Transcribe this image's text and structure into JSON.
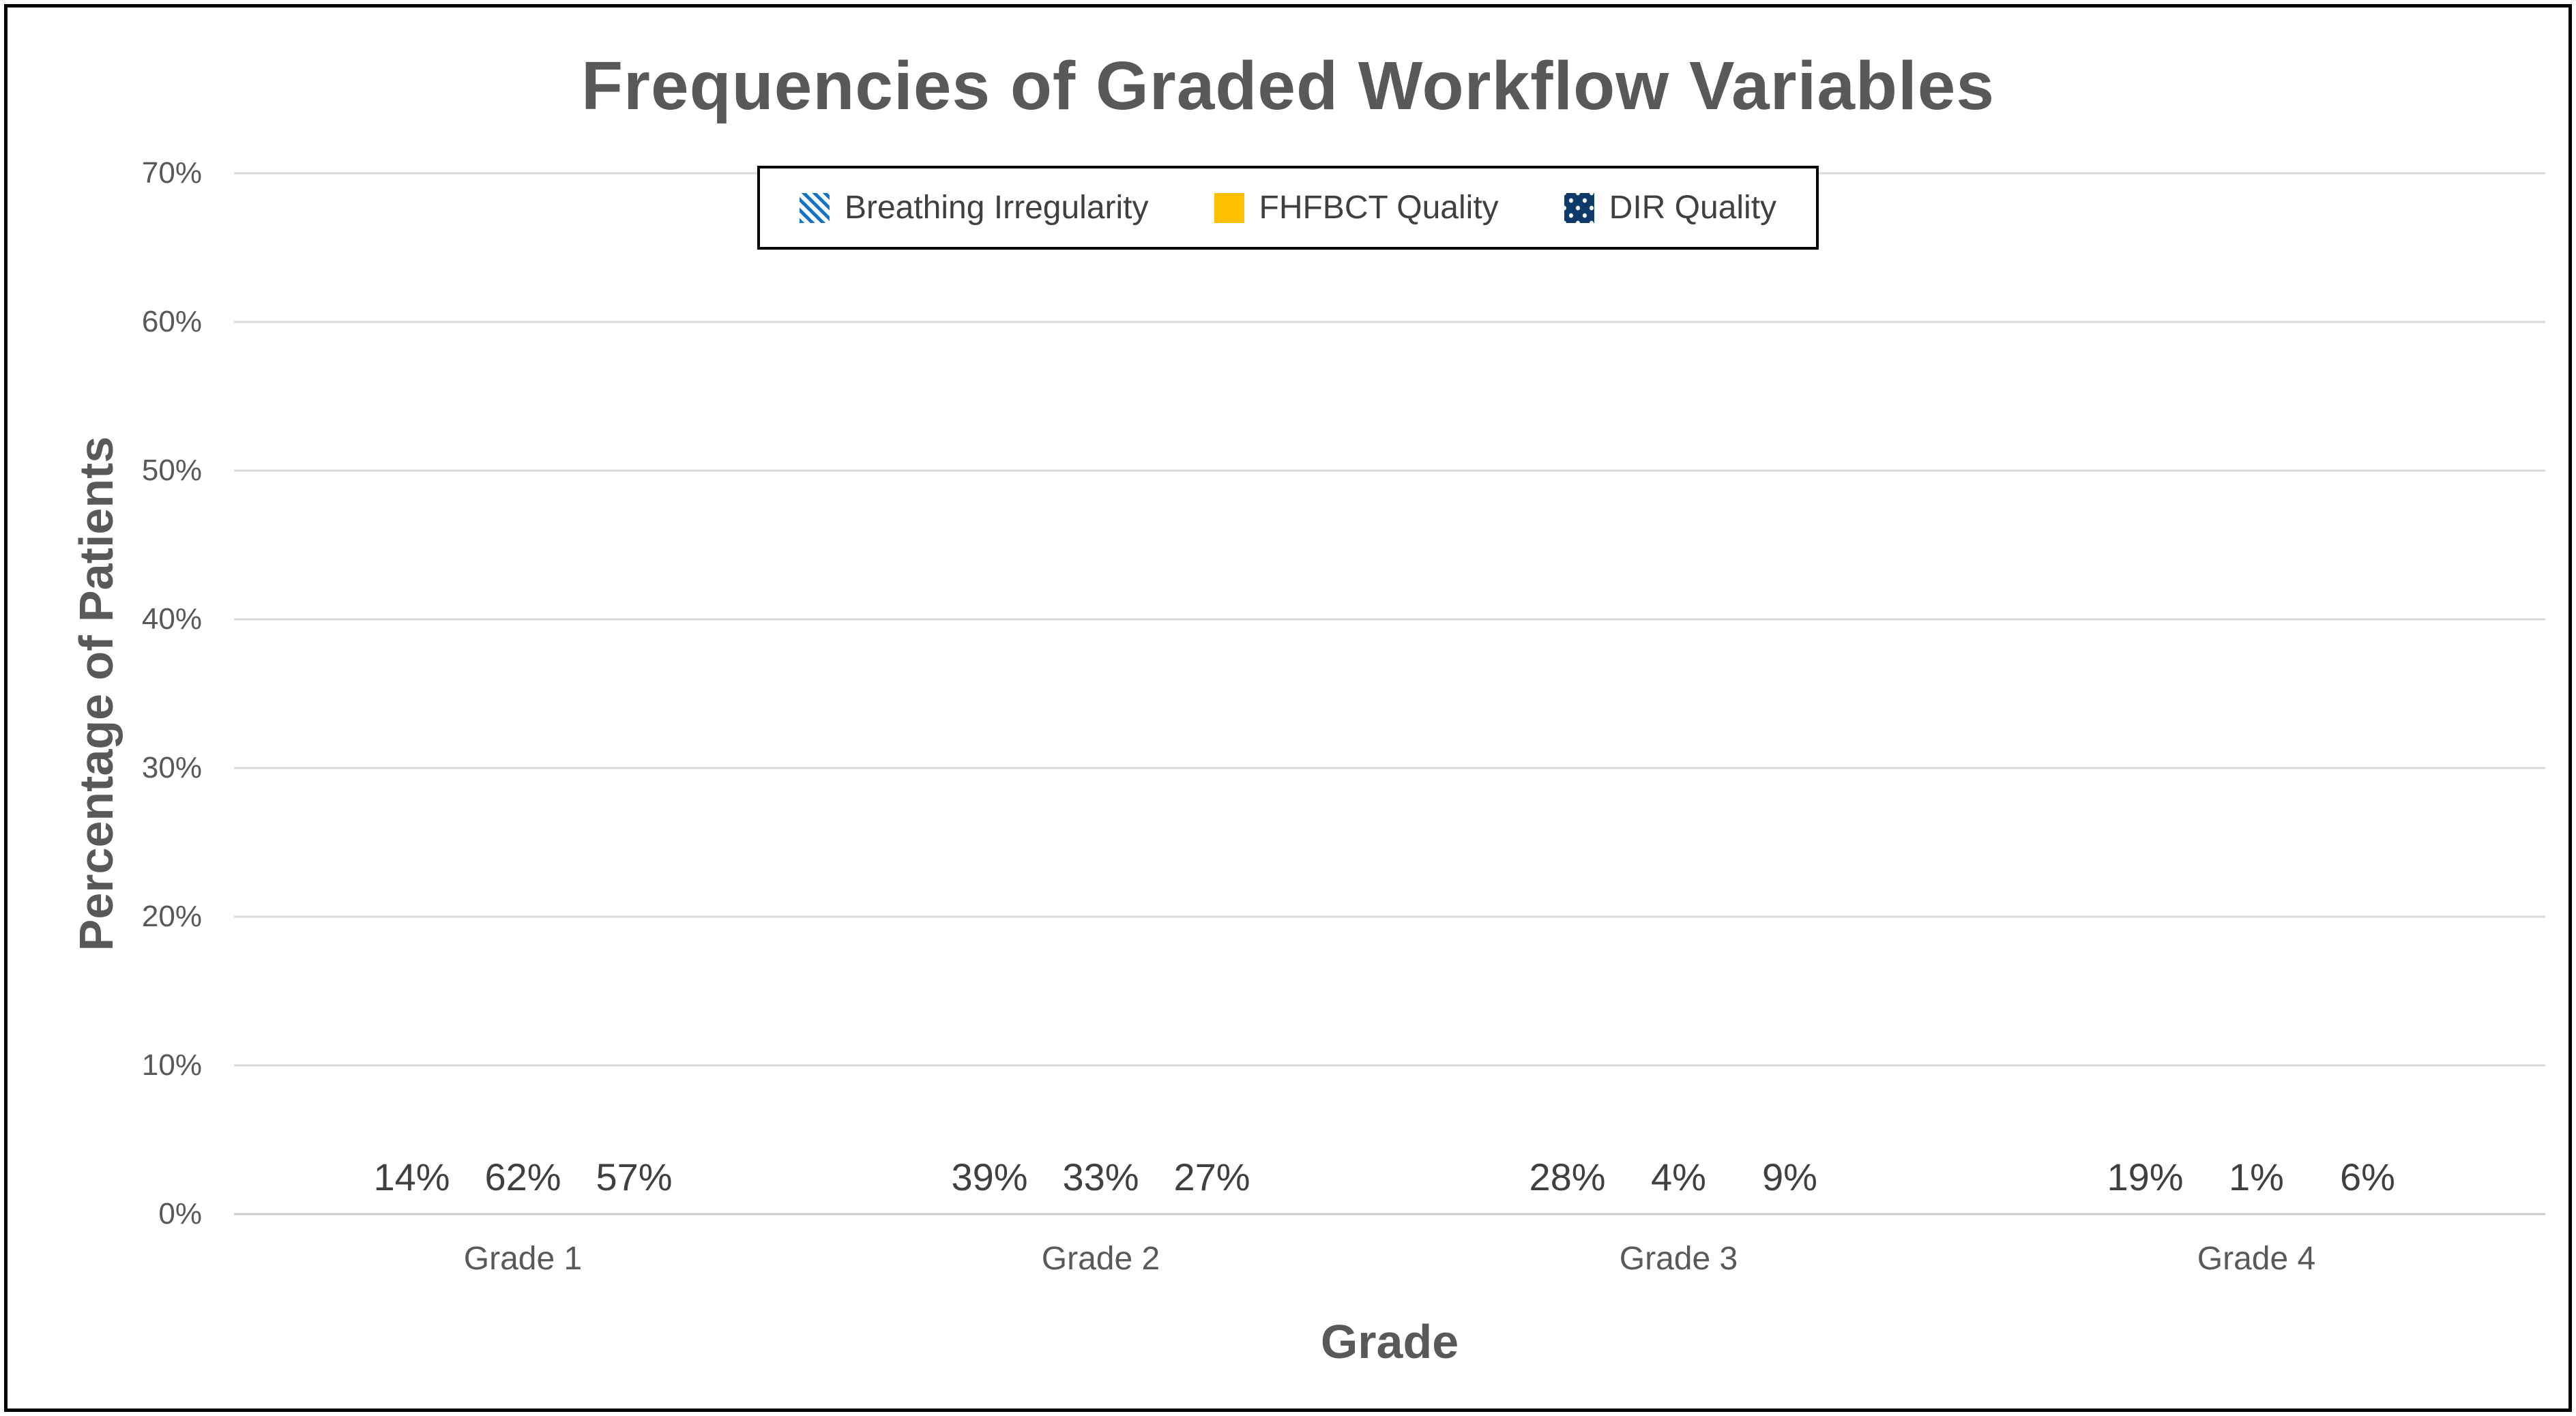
{
  "chart_data": {
    "type": "bar",
    "title": "Frequencies of Graded Workflow Variables",
    "xlabel": "Grade",
    "ylabel": "Percentage of Patients",
    "categories": [
      "Grade 1",
      "Grade 2",
      "Grade 3",
      "Grade 4"
    ],
    "series": [
      {
        "name": "Breathing Irregularity",
        "pattern": "stripes",
        "color": "#1273C7",
        "values": [
          14,
          39,
          28,
          19
        ],
        "labels": [
          "14%",
          "39%",
          "28%",
          "19%"
        ]
      },
      {
        "name": "FHFBCT Quality",
        "pattern": "solid",
        "color": "#FFC000",
        "values": [
          62,
          33,
          4,
          1
        ],
        "labels": [
          "62%",
          "33%",
          "4%",
          "1%"
        ]
      },
      {
        "name": "DIR Quality",
        "pattern": "dots",
        "color": "#0E3A69",
        "values": [
          57,
          27,
          9,
          6
        ],
        "labels": [
          "57%",
          "27%",
          "9%",
          "6%"
        ]
      }
    ],
    "ylim": [
      0,
      70
    ],
    "yticks": [
      "0%",
      "10%",
      "20%",
      "30%",
      "40%",
      "50%",
      "60%",
      "70%"
    ],
    "grid": true,
    "grid_color": "#D9D9D9",
    "legend_position": "top-center",
    "text_color": "#595959",
    "label_color": "#404040"
  }
}
